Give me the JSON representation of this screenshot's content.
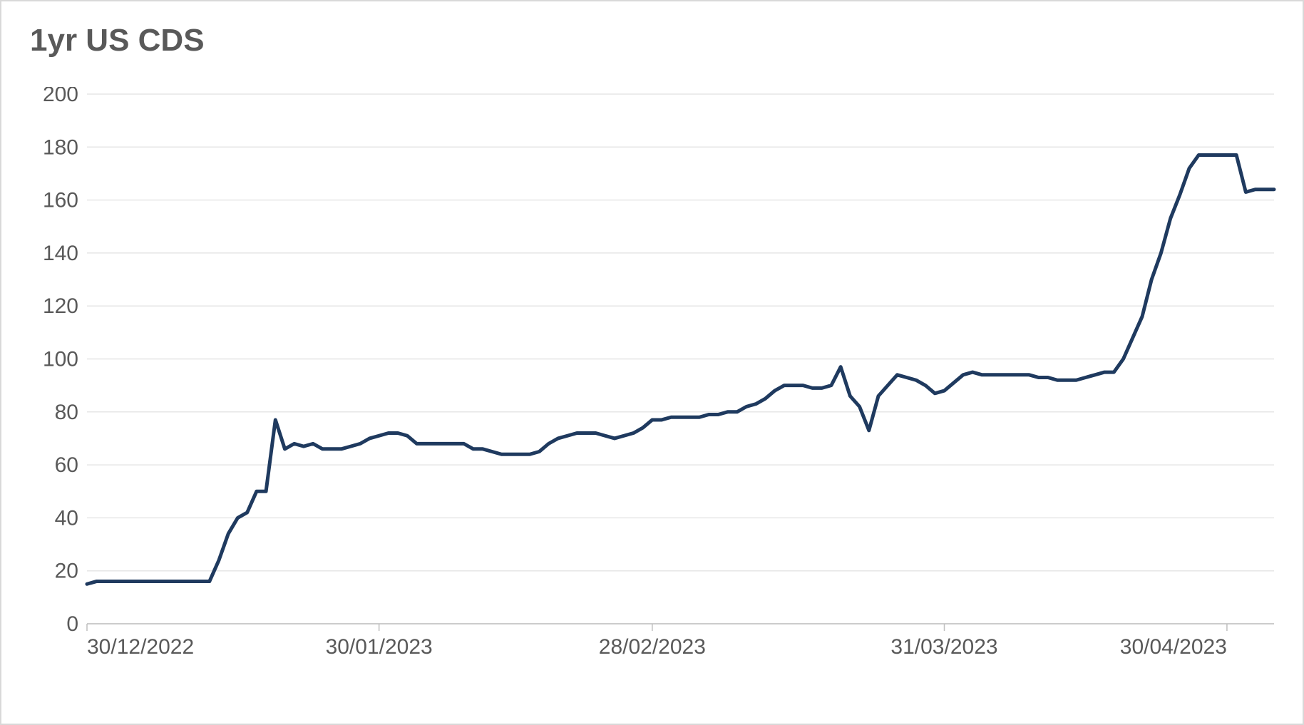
{
  "chart": {
    "type": "line",
    "title": "1yr US CDS",
    "title_fontsize": 44,
    "title_color": "#595959",
    "background_color": "#ffffff",
    "border_color": "#d9d9d9",
    "grid_color": "#e6e6e6",
    "axis_label_color": "#595959",
    "axis_label_fontsize": 30,
    "line_color": "#1f3a5f",
    "line_width": 5,
    "ylim": [
      0,
      200
    ],
    "ytick_step": 20,
    "yticks": [
      0,
      20,
      40,
      60,
      80,
      100,
      120,
      140,
      160,
      180,
      200
    ],
    "x_tick_positions": [
      0,
      31,
      60,
      91,
      121
    ],
    "x_tick_labels": [
      "30/12/2022",
      "30/01/2023",
      "28/02/2023",
      "31/03/2023",
      "30/04/2023"
    ],
    "x_domain": [
      0,
      126
    ],
    "series": [
      {
        "name": "1yr US CDS",
        "color": "#1f3a5f",
        "x": [
          0,
          1,
          2,
          3,
          4,
          5,
          6,
          7,
          8,
          9,
          10,
          11,
          12,
          13,
          14,
          15,
          16,
          17,
          18,
          19,
          20,
          21,
          22,
          23,
          24,
          25,
          26,
          27,
          28,
          29,
          30,
          31,
          32,
          33,
          34,
          35,
          36,
          37,
          38,
          39,
          40,
          41,
          42,
          43,
          44,
          45,
          46,
          47,
          48,
          49,
          50,
          51,
          52,
          53,
          54,
          55,
          56,
          57,
          58,
          59,
          60,
          61,
          62,
          63,
          64,
          65,
          66,
          67,
          68,
          69,
          70,
          71,
          72,
          73,
          74,
          75,
          76,
          77,
          78,
          79,
          80,
          81,
          82,
          83,
          84,
          85,
          86,
          87,
          88,
          89,
          90,
          91,
          92,
          93,
          94,
          95,
          96,
          97,
          98,
          99,
          100,
          101,
          102,
          103,
          104,
          105,
          106,
          107,
          108,
          109,
          110,
          111,
          112,
          113,
          114,
          115,
          116,
          117,
          118,
          119,
          120,
          121,
          122,
          123,
          124,
          125,
          126
        ],
        "y": [
          15,
          16,
          16,
          16,
          16,
          16,
          16,
          16,
          16,
          16,
          16,
          16,
          16,
          16,
          24,
          34,
          40,
          42,
          50,
          50,
          77,
          66,
          68,
          67,
          68,
          66,
          66,
          66,
          67,
          68,
          70,
          71,
          72,
          72,
          71,
          68,
          68,
          68,
          68,
          68,
          68,
          66,
          66,
          65,
          64,
          64,
          64,
          64,
          65,
          68,
          70,
          71,
          72,
          72,
          72,
          71,
          70,
          71,
          72,
          74,
          77,
          77,
          78,
          78,
          78,
          78,
          79,
          79,
          80,
          80,
          82,
          83,
          85,
          88,
          90,
          90,
          90,
          89,
          89,
          90,
          97,
          86,
          82,
          73,
          86,
          90,
          94,
          93,
          92,
          90,
          87,
          88,
          91,
          94,
          95,
          94,
          94,
          94,
          94,
          94,
          94,
          93,
          93,
          92,
          92,
          92,
          93,
          94,
          95,
          95,
          100,
          108,
          116,
          130,
          140,
          153,
          162,
          172,
          177,
          177,
          177,
          177,
          177,
          163,
          164,
          164,
          164
        ]
      }
    ]
  }
}
